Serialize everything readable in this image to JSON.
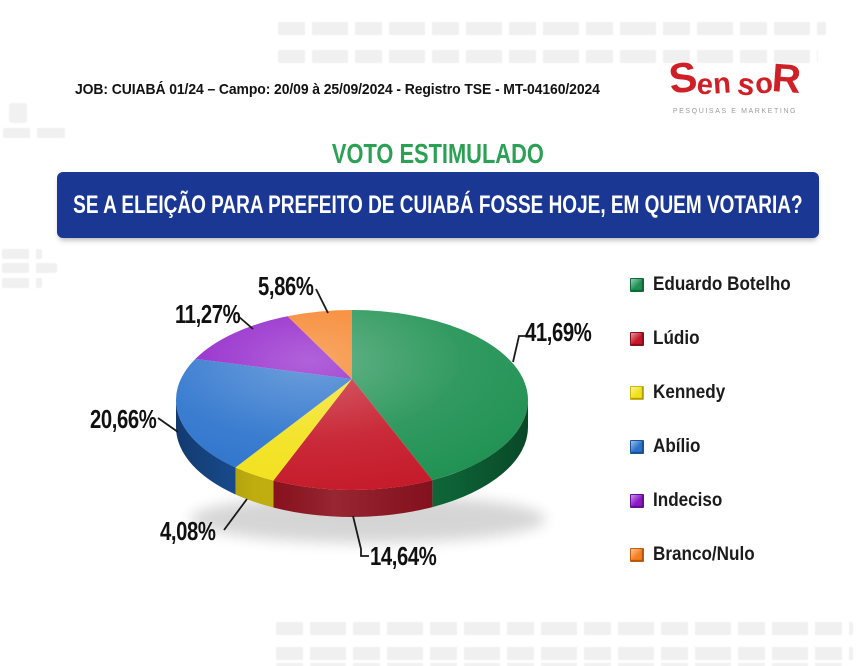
{
  "header": {
    "job_line": "JOB: CUIABÁ 01/24 – Campo: 20/09 à 25/09/2024  - Registro TSE - MT-04160/2024"
  },
  "logo": {
    "name": "SensoR",
    "letters": [
      "S",
      "e",
      "n",
      "s",
      "o",
      "R"
    ],
    "tagline": "PESQUISAS E MARKETING",
    "color": "#cf1f27",
    "tagline_color": "#9b9b9b"
  },
  "title": {
    "text": "VOTO ESTIMULADO",
    "color": "#2ba155"
  },
  "question_banner": {
    "text": "SE A ELEIÇÃO PARA PREFEITO DE CUIABÁ FOSSE HOJE, EM QUEM VOTARIA?",
    "background": "#1a3794",
    "text_color": "#ffffff"
  },
  "chart_data": {
    "type": "pie",
    "style": "3d",
    "title": "VOTO ESTIMULADO",
    "question": "SE A ELEIÇÃO PARA PREFEITO DE CUIABÁ FOSSE HOJE, EM QUEM VOTARIA?",
    "unit": "%",
    "decimal_style": "comma",
    "start_angle_deg": 0,
    "direction": "clockwise",
    "legend_position": "right",
    "labels_shown": "percent_with_leader_lines",
    "slices": [
      {
        "label": "Eduardo Botelho",
        "value": 41.69,
        "display": "41,69%",
        "color": "#1f9152",
        "side_color": "#0e6a3a"
      },
      {
        "label": "Lúdio",
        "value": 14.64,
        "display": "14,64%",
        "color": "#c51828",
        "side_color": "#8c0f1c"
      },
      {
        "label": "Kennedy",
        "value": 4.08,
        "display": "4,08%",
        "color": "#f2e11a",
        "side_color": "#c9b60f"
      },
      {
        "label": "Abílio",
        "value": 20.66,
        "display": "20,66%",
        "color": "#2a72cc",
        "side_color": "#1b539e"
      },
      {
        "label": "Indeciso",
        "value": 11.27,
        "display": "11,27%",
        "color": "#8c18c8",
        "side_color": "#650e95"
      },
      {
        "label": "Branco/Nulo",
        "value": 5.86,
        "display": "5,86%",
        "color": "#f57e20",
        "side_color": "#c25d0e"
      }
    ]
  }
}
